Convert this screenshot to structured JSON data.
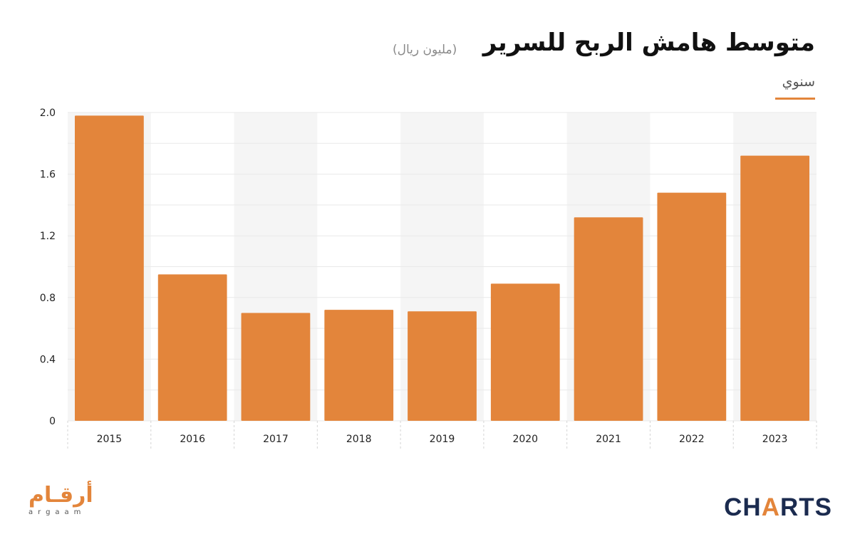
{
  "header": {
    "title": "متوسط هامش الربح للسرير",
    "unit": "(مليون ريال)",
    "frequency": "سنوي"
  },
  "branding": {
    "left_logo_ar": "أرقـام",
    "left_logo_en": "argaam",
    "right_logo_pre": "CH",
    "right_logo_bolt": "A",
    "right_logo_post": "RTS"
  },
  "colors": {
    "bar": "#e3853b",
    "band": "#f5f5f5",
    "grid": "#e9e9e9",
    "accent": "#e3853b",
    "brand_navy": "#1b2b4f"
  },
  "chart_data": {
    "type": "bar",
    "categories": [
      "2015",
      "2016",
      "2017",
      "2018",
      "2019",
      "2020",
      "2021",
      "2022",
      "2023"
    ],
    "values": [
      1.98,
      0.95,
      0.7,
      0.72,
      0.71,
      0.89,
      1.32,
      1.48,
      1.72
    ],
    "yticks": [
      "0",
      "0.4",
      "0.8",
      "1.2",
      "1.6",
      "2.0"
    ],
    "ylim": [
      0,
      2.0
    ],
    "grid": true,
    "legend": "none"
  }
}
